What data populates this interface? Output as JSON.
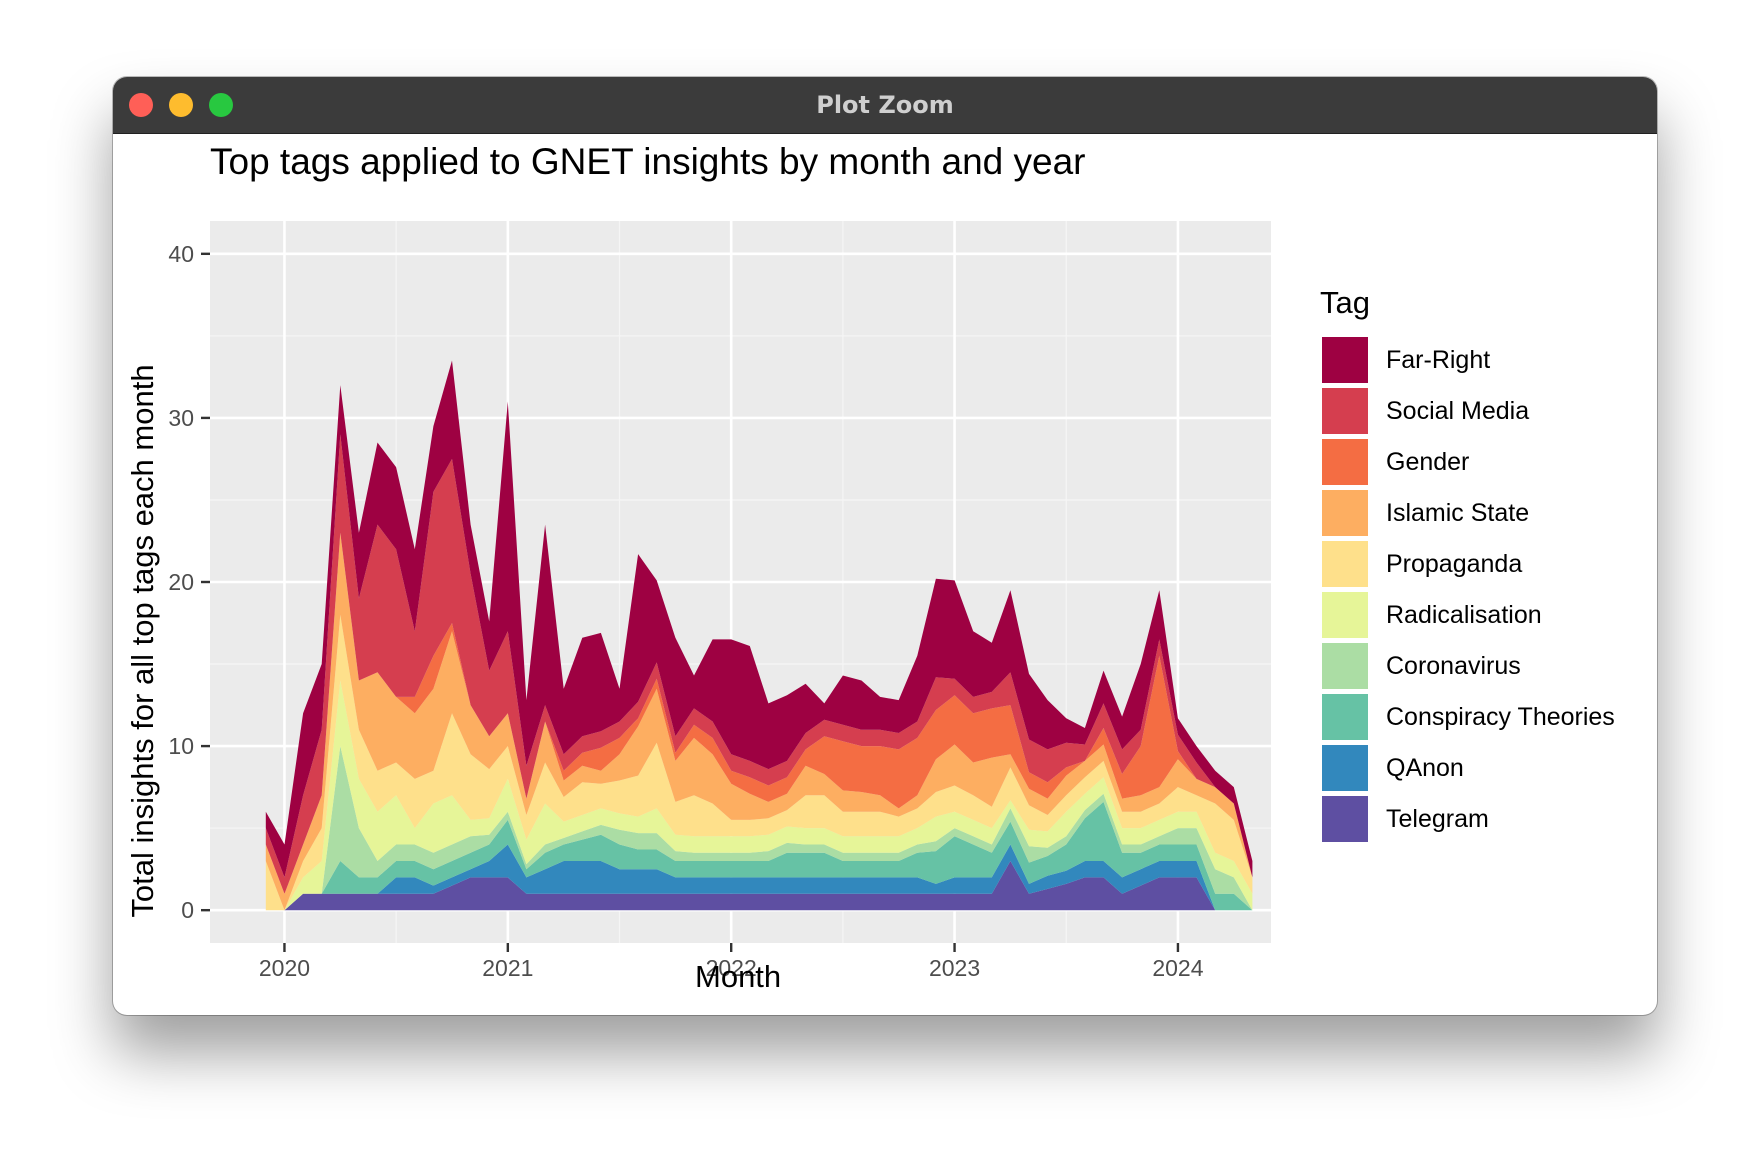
{
  "window": {
    "title": "Plot Zoom",
    "controls": [
      "close-icon",
      "minimize-icon",
      "zoom-icon"
    ],
    "control_colors": {
      "close": "#ff5f57",
      "minimize": "#febc2e",
      "zoom": "#28c840"
    }
  },
  "chart_data": {
    "type": "area",
    "stacked": true,
    "title": "Top tags applied to GNET insights by month and year",
    "xlabel": "Month",
    "ylabel": "Total insights for all top tags each month",
    "xticks": [
      "2020",
      "2021",
      "2022",
      "2023",
      "2024"
    ],
    "yticks": [
      0,
      10,
      20,
      30,
      40
    ],
    "xlim": [
      "2019-09",
      "2024-06"
    ],
    "ylim": [
      -2,
      42
    ],
    "grid": true,
    "legend_title": "Tag",
    "legend_position": "right",
    "x": [
      "2019-12",
      "2020-01",
      "2020-02",
      "2020-03",
      "2020-04",
      "2020-05",
      "2020-06",
      "2020-07",
      "2020-08",
      "2020-09",
      "2020-10",
      "2020-11",
      "2020-12",
      "2021-01",
      "2021-02",
      "2021-03",
      "2021-04",
      "2021-05",
      "2021-06",
      "2021-07",
      "2021-08",
      "2021-09",
      "2021-10",
      "2021-11",
      "2021-12",
      "2022-01",
      "2022-02",
      "2022-03",
      "2022-04",
      "2022-05",
      "2022-06",
      "2022-07",
      "2022-08",
      "2022-09",
      "2022-10",
      "2022-11",
      "2022-12",
      "2023-01",
      "2023-02",
      "2023-03",
      "2023-04",
      "2023-05",
      "2023-06",
      "2023-07",
      "2023-08",
      "2023-09",
      "2023-10",
      "2023-11",
      "2023-12",
      "2024-01",
      "2024-02",
      "2024-03",
      "2024-04",
      "2024-05"
    ],
    "series": [
      {
        "name": "Telegram",
        "color": "#5e4fa2",
        "values": [
          0,
          0,
          1,
          1,
          1,
          1,
          1,
          1,
          1,
          1,
          1.5,
          2,
          2,
          2,
          1,
          1,
          1,
          1,
          1,
          1,
          1,
          1,
          1,
          1,
          1,
          1,
          1,
          1,
          1,
          1,
          1,
          1,
          1,
          1,
          1,
          1,
          1,
          1,
          1,
          1,
          3,
          1,
          1.3,
          1.6,
          2,
          2,
          1,
          1.5,
          2,
          2,
          2,
          0,
          0,
          0
        ]
      },
      {
        "name": "QAnon",
        "color": "#3288bd",
        "values": [
          0,
          0,
          0,
          0,
          0,
          0,
          0,
          1,
          1,
          0.5,
          0.5,
          0.5,
          1,
          2,
          1,
          1.5,
          2,
          2,
          2,
          1.5,
          1.5,
          1.5,
          1,
          1,
          1,
          1,
          1,
          1,
          1,
          1,
          1,
          1,
          1,
          1,
          1,
          1,
          0.6,
          1,
          1,
          1,
          1,
          0.6,
          0.8,
          0.8,
          1,
          1,
          1,
          1,
          1,
          1,
          1,
          0,
          0,
          0
        ]
      },
      {
        "name": "Conspiracy Theories",
        "color": "#66c2a5",
        "values": [
          0,
          0,
          0,
          0,
          2,
          1,
          1,
          1,
          1,
          1,
          1,
          1,
          1,
          1.5,
          0.5,
          1,
          1,
          1.3,
          1.6,
          1.5,
          1.2,
          1.2,
          1,
          1,
          1,
          1,
          1,
          1,
          1.5,
          1.5,
          1.5,
          1,
          1,
          1,
          1,
          1.5,
          2,
          2.5,
          2,
          1.5,
          1.4,
          1.3,
          1.2,
          1.6,
          2.6,
          3.6,
          1.5,
          1,
          1,
          1,
          1,
          1,
          1,
          0
        ]
      },
      {
        "name": "Coronavirus",
        "color": "#abdda4",
        "values": [
          0,
          0,
          0,
          0,
          7,
          3,
          1,
          1,
          1,
          1,
          1,
          1,
          0.6,
          0.5,
          0.3,
          0.5,
          0.4,
          0.5,
          0.6,
          0.9,
          1,
          1,
          0.6,
          0.5,
          0.5,
          0.5,
          0.5,
          0.6,
          0.6,
          0.5,
          0.5,
          0.5,
          0.5,
          0.5,
          0.5,
          0.5,
          0.6,
          0.5,
          0.5,
          0.5,
          0.8,
          1,
          0.5,
          0.5,
          0.5,
          0.5,
          0.5,
          0.5,
          0.5,
          1,
          1,
          1.5,
          1,
          0
        ]
      },
      {
        "name": "Radicalisation",
        "color": "#e6f598",
        "values": [
          0,
          0,
          1,
          2,
          4,
          3,
          3,
          3,
          1,
          3,
          3,
          1,
          1,
          2,
          1.5,
          2.5,
          1,
          1,
          1,
          1,
          1,
          1.5,
          1,
          1,
          1,
          1,
          1,
          1,
          1,
          1,
          1,
          1,
          1,
          1,
          1,
          1,
          1.5,
          1,
          1,
          1,
          0.5,
          1,
          1,
          1.5,
          1,
          1,
          1,
          1,
          1,
          1,
          1,
          1,
          1,
          1
        ]
      },
      {
        "name": "Propaganda",
        "color": "#fee08b",
        "values": [
          3,
          0,
          1,
          2,
          4,
          3,
          2.5,
          2,
          3,
          2,
          5,
          4,
          3,
          2,
          1.5,
          2.5,
          1.5,
          2,
          1.5,
          2,
          2.5,
          4,
          2,
          2.5,
          2,
          1,
          1,
          1,
          1,
          2,
          2,
          1.5,
          1.5,
          1.5,
          1.2,
          1.2,
          1.5,
          1.6,
          1.5,
          1.3,
          2,
          1.5,
          1,
          1,
          1,
          1,
          1,
          1,
          1,
          1.5,
          1,
          3,
          2.5,
          1
        ]
      },
      {
        "name": "Islamic State",
        "color": "#fdae61",
        "values": [
          1,
          1,
          1,
          2,
          5,
          3,
          6,
          4,
          4,
          5,
          5,
          3,
          2,
          2,
          1,
          2.5,
          1,
          1,
          0.8,
          1.6,
          3,
          3.3,
          2.5,
          3.5,
          3,
          2.2,
          1.6,
          1,
          1,
          1.8,
          1.3,
          1.3,
          1.2,
          1,
          0.5,
          0.8,
          2,
          2.5,
          2,
          3,
          0.8,
          1,
          1,
          1.2,
          1,
          1,
          0.8,
          1,
          1,
          1.7,
          1,
          1,
          1,
          0
        ]
      },
      {
        "name": "Gender",
        "color": "#f46d43",
        "values": [
          0,
          0,
          0,
          0,
          0,
          0,
          0,
          0,
          1,
          2,
          0.5,
          0,
          0,
          0,
          0,
          0,
          0.6,
          0.8,
          1.4,
          1,
          0.5,
          0.6,
          0.5,
          0.8,
          1,
          0.8,
          1,
          1,
          1,
          1,
          2.3,
          3,
          2.8,
          3,
          3.6,
          3.5,
          3,
          3,
          3,
          3,
          3,
          1,
          1,
          0.5,
          0,
          1,
          1.5,
          3,
          8,
          0.5,
          0,
          0,
          0,
          0
        ]
      },
      {
        "name": "Social Media",
        "color": "#d53e4f",
        "values": [
          1,
          1,
          3,
          4,
          6,
          5,
          9,
          9,
          4,
          10,
          10,
          8,
          4,
          5,
          2,
          1,
          1,
          1,
          1,
          1,
          1,
          1,
          1,
          1,
          1,
          1,
          1,
          1,
          1,
          1,
          1,
          1,
          1,
          1,
          1,
          1,
          2,
          1,
          1,
          1,
          2,
          2,
          2,
          1.5,
          1,
          1.5,
          1.5,
          1,
          1,
          1,
          1,
          0,
          0,
          0
        ]
      },
      {
        "name": "Far-Right",
        "color": "#9e0142",
        "values": [
          1,
          2,
          5,
          4,
          3,
          4,
          5,
          5,
          5,
          4,
          6,
          3,
          3,
          14,
          4,
          11,
          4,
          6,
          6,
          2,
          9,
          5,
          6,
          2,
          5,
          7,
          7,
          4,
          4,
          3,
          1,
          3,
          3,
          2,
          2,
          4,
          6,
          6,
          4,
          3,
          5,
          4,
          3,
          1.5,
          1,
          2,
          2,
          4,
          3,
          1,
          1,
          1,
          1,
          1
        ]
      }
    ]
  }
}
